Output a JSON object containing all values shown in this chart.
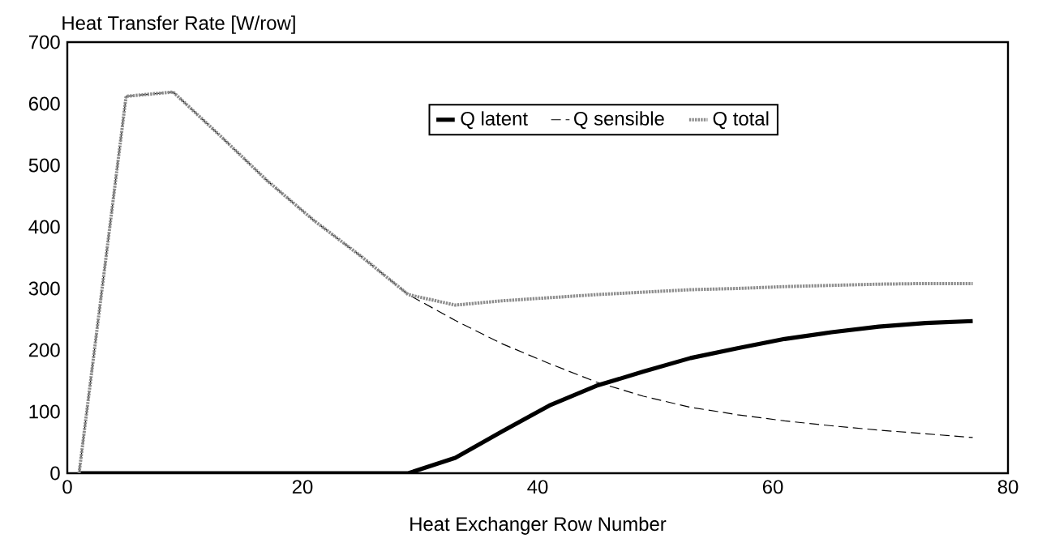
{
  "chart_data": {
    "type": "line",
    "ylabel": "Heat Transfer Rate [W/row]",
    "xlabel": "Heat Exchanger Row Number",
    "x": [
      1,
      5,
      9,
      13,
      17,
      21,
      25,
      29,
      33,
      37,
      41,
      45,
      49,
      53,
      57,
      61,
      65,
      69,
      73,
      77
    ],
    "series": [
      {
        "name": "Q latent",
        "color": "#000000",
        "line_style": "solid",
        "values": [
          0,
          0,
          0,
          0,
          0,
          0,
          0,
          0,
          25,
          68,
          110,
          142,
          165,
          187,
          203,
          218,
          229,
          238,
          244,
          247
        ]
      },
      {
        "name": "Q sensible",
        "color": "#000000",
        "line_style": "dashed",
        "values": [
          0,
          612,
          619,
          548,
          475,
          410,
          352,
          290,
          248,
          210,
          178,
          148,
          125,
          107,
          95,
          85,
          77,
          70,
          64,
          58
        ]
      },
      {
        "name": "Q total",
        "color": "#8c8c8c",
        "line_style": "dotted",
        "values": [
          0,
          612,
          619,
          548,
          475,
          410,
          352,
          290,
          273,
          280,
          285,
          290,
          294,
          298,
          300,
          303,
          305,
          307,
          308,
          308
        ]
      }
    ],
    "xlim": [
      0,
      80
    ],
    "ylim": [
      0,
      700
    ],
    "xticks": [
      0,
      20,
      40,
      60,
      80
    ],
    "yticks": [
      0,
      100,
      200,
      300,
      400,
      500,
      600,
      700
    ],
    "legend": "top",
    "grid": false,
    "marker": "none"
  }
}
